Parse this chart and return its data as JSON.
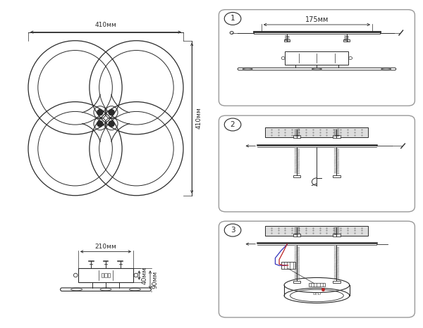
{
  "bg_color": "#ffffff",
  "line_color": "#2a2a2a",
  "dim_color": "#2a2a2a",
  "blue_wire": "#3333bb",
  "red_wire": "#bb2222",
  "top_width_label": "410мм",
  "top_height_label": "410мм",
  "side_width_label": "210мм",
  "side_h1_label": "40мм",
  "side_h2_label": "90мм",
  "step1_label": "175мм",
  "steps": [
    "1",
    "2",
    "3"
  ]
}
